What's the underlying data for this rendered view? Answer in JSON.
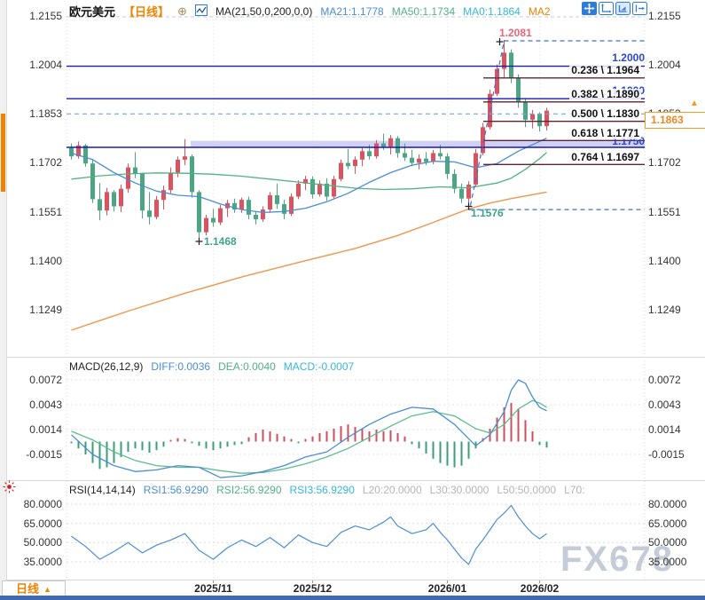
{
  "header": {
    "symbol": "欧元美元",
    "timeframe": "【日线】",
    "link_icon": "⊕",
    "ma_settings": "MA(21,50,0,200,0,0)",
    "ma21_label": "MA21:1.1778",
    "ma50_label": "MA50:1.1734",
    "ma0_label": "MA0:1.1864",
    "ma2_label": "MA2"
  },
  "toolbar": {
    "icons": [
      "pan-tool",
      "axis-scale",
      "axis-scale-active",
      "jump-to-latest"
    ]
  },
  "main_chart": {
    "current_price": "1.1863",
    "peak_label": "1.2081",
    "low_label_1": "1.1468",
    "low_label_2": "1.1576",
    "level_labels": {
      "l1": "1.2000",
      "l2": "1.1900",
      "l3": "1.1750"
    },
    "fib_labels": [
      "0.236 \\ 1.1964",
      "0.382 \\ 1.1890",
      "0.500 \\ 1.1830",
      "0.618 \\ 1.1771",
      "0.764 \\ 1.1697"
    ]
  },
  "macd_header": {
    "name": "MACD(26,12,9)",
    "diff": "DIFF:0.0036",
    "dea": "DEA:0.0040",
    "macd": "MACD:-0.0007"
  },
  "rsi_header": {
    "name": "RSI(14,14,14)",
    "rsi1": "RSI1:56.9290",
    "rsi2": "RSI2:56.9290",
    "rsi3": "RSI3:56.9290",
    "l20": "L20:20.0000",
    "l30": "L30:30.0000",
    "l50": "L50:50.0000",
    "l70": "L70:"
  },
  "bottom_bar": {
    "timeframe": "日线",
    "arrow": "▲"
  },
  "watermark": "FX678",
  "time_axis": [
    "2025/11",
    "2025/12",
    "2026/01",
    "2026/02"
  ],
  "colors": {
    "up": "#d9545f",
    "down": "#4ca583",
    "ma21": "#4a8ed2",
    "ma50": "#52b183",
    "ma200": "#f0954c",
    "navy_line": "#1c1cae",
    "fib_line": "#5e2433",
    "dashed_blue": "#3a6fd8",
    "dashed_light": "#7aa0e4",
    "band": "#c9c9f2",
    "macd_up": "#cc4f5e",
    "macd_down": "#3e9e78",
    "diff": "#4a8ed2",
    "dea": "#5cbd8e",
    "rsi": "#4a8ed2",
    "accent_orange": "#f08300",
    "bottom_strip": "#3f69b5",
    "watermark": "#c5cbd7"
  },
  "chart_data": [
    {
      "type": "candlestick",
      "title": "EUR/USD Daily (欧元美元 日线)",
      "price_axis": [
        1.2155,
        1.2004,
        1.1853,
        1.1702,
        1.1551,
        1.14,
        1.1249
      ],
      "x_ticks": [
        {
          "label": "2025/11",
          "index": 20
        },
        {
          "label": "2025/12",
          "index": 34
        },
        {
          "label": "2026/01",
          "index": 53
        },
        {
          "label": "2026/02",
          "index": 66
        }
      ],
      "candles_ohlc": [
        [
          1.1748,
          1.1762,
          1.1712,
          1.1722
        ],
        [
          1.1722,
          1.1768,
          1.1715,
          1.1756
        ],
        [
          1.1756,
          1.176,
          1.169,
          1.17
        ],
        [
          1.17,
          1.1712,
          1.1578,
          1.159
        ],
        [
          1.159,
          1.164,
          1.1525,
          1.1555
        ],
        [
          1.1555,
          1.1625,
          1.154,
          1.1612
        ],
        [
          1.1612,
          1.1618,
          1.1552,
          1.1568
        ],
        [
          1.1568,
          1.1635,
          1.155,
          1.1622
        ],
        [
          1.1622,
          1.17,
          1.161,
          1.1688
        ],
        [
          1.1688,
          1.1735,
          1.1655,
          1.1668
        ],
        [
          1.1668,
          1.1672,
          1.153,
          1.1555
        ],
        [
          1.1555,
          1.1612,
          1.1512,
          1.1535
        ],
        [
          1.1535,
          1.16,
          1.1528,
          1.1588
        ],
        [
          1.1588,
          1.1632,
          1.1558,
          1.1618
        ],
        [
          1.1618,
          1.1688,
          1.1608,
          1.1672
        ],
        [
          1.1672,
          1.1722,
          1.1658,
          1.1712
        ],
        [
          1.1712,
          1.1775,
          1.1695,
          1.1722
        ],
        [
          1.1722,
          1.1728,
          1.1595,
          1.1612
        ],
        [
          1.1612,
          1.1618,
          1.1468,
          1.1488
        ],
        [
          1.1488,
          1.1542,
          1.1478,
          1.1532
        ],
        [
          1.1532,
          1.156,
          1.1505,
          1.1518
        ],
        [
          1.1518,
          1.1572,
          1.151,
          1.1562
        ],
        [
          1.1562,
          1.1588,
          1.1535,
          1.1578
        ],
        [
          1.1578,
          1.1592,
          1.1548,
          1.1558
        ],
        [
          1.1558,
          1.1595,
          1.1548,
          1.1588
        ],
        [
          1.1588,
          1.1598,
          1.1528,
          1.1542
        ],
        [
          1.1542,
          1.1552,
          1.1512,
          1.1528
        ],
        [
          1.1528,
          1.1568,
          1.152,
          1.1558
        ],
        [
          1.1558,
          1.1612,
          1.1548,
          1.1602
        ],
        [
          1.1602,
          1.1638,
          1.156,
          1.1575
        ],
        [
          1.1575,
          1.1588,
          1.1528,
          1.1545
        ],
        [
          1.1545,
          1.1608,
          1.1538,
          1.1598
        ],
        [
          1.1598,
          1.1648,
          1.159,
          1.1638
        ],
        [
          1.1638,
          1.1662,
          1.1618,
          1.1652
        ],
        [
          1.1652,
          1.166,
          1.1592,
          1.1605
        ],
        [
          1.1605,
          1.1648,
          1.1598,
          1.1638
        ],
        [
          1.1638,
          1.1655,
          1.1585,
          1.1598
        ],
        [
          1.1598,
          1.1662,
          1.1592,
          1.1652
        ],
        [
          1.1652,
          1.1712,
          1.1645,
          1.1702
        ],
        [
          1.1702,
          1.1745,
          1.1682,
          1.1692
        ],
        [
          1.1692,
          1.1722,
          1.1668,
          1.1712
        ],
        [
          1.1712,
          1.1748,
          1.1692,
          1.1738
        ],
        [
          1.1738,
          1.1758,
          1.1712,
          1.1722
        ],
        [
          1.1722,
          1.1772,
          1.1715,
          1.1762
        ],
        [
          1.1762,
          1.1792,
          1.1742,
          1.1752
        ],
        [
          1.1752,
          1.1788,
          1.1728,
          1.1778
        ],
        [
          1.1778,
          1.1785,
          1.1718,
          1.1732
        ],
        [
          1.1732,
          1.1762,
          1.1708,
          1.1718
        ],
        [
          1.1718,
          1.1742,
          1.1692,
          1.1702
        ],
        [
          1.1702,
          1.1728,
          1.1682,
          1.1715
        ],
        [
          1.1715,
          1.1735,
          1.1695,
          1.1705
        ],
        [
          1.1705,
          1.1742,
          1.1698,
          1.1732
        ],
        [
          1.1732,
          1.1758,
          1.1712,
          1.1722
        ],
        [
          1.1722,
          1.1732,
          1.1652,
          1.1668
        ],
        [
          1.1668,
          1.1682,
          1.1608,
          1.1622
        ],
        [
          1.1622,
          1.1638,
          1.1578,
          1.1592
        ],
        [
          1.1592,
          1.1645,
          1.1576,
          1.1635
        ],
        [
          1.1635,
          1.1745,
          1.1628,
          1.1732
        ],
        [
          1.1732,
          1.1825,
          1.1725,
          1.1812
        ],
        [
          1.1812,
          1.1928,
          1.1805,
          1.1915
        ],
        [
          1.1915,
          1.2005,
          1.1908,
          1.1992
        ],
        [
          1.1992,
          1.2081,
          1.1962,
          1.2042
        ],
        [
          1.2042,
          1.2052,
          1.1948,
          1.1962
        ],
        [
          1.1962,
          1.1975,
          1.1872,
          1.1888
        ],
        [
          1.1888,
          1.1902,
          1.1812,
          1.1835
        ],
        [
          1.1835,
          1.1865,
          1.1808,
          1.1852
        ],
        [
          1.1852,
          1.1858,
          1.1798,
          1.1815
        ],
        [
          1.1815,
          1.1872,
          1.1802,
          1.1863
        ]
      ],
      "ma21": [
        [
          0,
          1.1732
        ],
        [
          3,
          1.1712
        ],
        [
          6,
          1.1672
        ],
        [
          9,
          1.164
        ],
        [
          12,
          1.1615
        ],
        [
          15,
          1.1602
        ],
        [
          18,
          1.1598
        ],
        [
          21,
          1.1575
        ],
        [
          24,
          1.1558
        ],
        [
          27,
          1.1549
        ],
        [
          30,
          1.1552
        ],
        [
          33,
          1.1562
        ],
        [
          36,
          1.1582
        ],
        [
          39,
          1.1608
        ],
        [
          42,
          1.1642
        ],
        [
          45,
          1.1672
        ],
        [
          48,
          1.1695
        ],
        [
          51,
          1.1707
        ],
        [
          54,
          1.1705
        ],
        [
          57,
          1.1687
        ],
        [
          60,
          1.17
        ],
        [
          63,
          1.1738
        ],
        [
          66,
          1.1768
        ],
        [
          67,
          1.1778
        ]
      ],
      "ma50": [
        [
          0,
          1.1652
        ],
        [
          4,
          1.1662
        ],
        [
          8,
          1.1668
        ],
        [
          12,
          1.1671
        ],
        [
          16,
          1.167
        ],
        [
          20,
          1.1667
        ],
        [
          24,
          1.1661
        ],
        [
          28,
          1.1652
        ],
        [
          32,
          1.1643
        ],
        [
          36,
          1.1633
        ],
        [
          40,
          1.1624
        ],
        [
          44,
          1.162
        ],
        [
          48,
          1.1622
        ],
        [
          52,
          1.1628
        ],
        [
          56,
          1.1625
        ],
        [
          60,
          1.164
        ],
        [
          62,
          1.1655
        ],
        [
          64,
          1.1682
        ],
        [
          66,
          1.1715
        ],
        [
          67,
          1.1734
        ]
      ],
      "ma200": [
        [
          0,
          1.1186
        ],
        [
          8,
          1.1245
        ],
        [
          16,
          1.13
        ],
        [
          24,
          1.135
        ],
        [
          32,
          1.1395
        ],
        [
          40,
          1.1438
        ],
        [
          46,
          1.1478
        ],
        [
          50,
          1.151
        ],
        [
          53,
          1.1535
        ],
        [
          56,
          1.156
        ],
        [
          59,
          1.1578
        ],
        [
          62,
          1.1592
        ],
        [
          64,
          1.16
        ],
        [
          67,
          1.1612
        ]
      ],
      "h_lines": [
        1.2,
        1.19,
        1.175
      ],
      "fib_levels": [
        {
          "ratio": 0.236,
          "price": 1.1964
        },
        {
          "ratio": 0.382,
          "price": 1.189
        },
        {
          "ratio": 0.5,
          "price": 1.183
        },
        {
          "ratio": 0.618,
          "price": 1.1771
        },
        {
          "ratio": 0.764,
          "price": 1.1697
        }
      ],
      "band_zone": {
        "price_top": 1.177,
        "price_bottom": 1.1748,
        "start_index": 17
      },
      "annotations": {
        "swing_high": {
          "price": 1.2081,
          "index": 61
        },
        "swing_low": {
          "price": 1.1576,
          "index": 56
        },
        "major_low": {
          "price": 1.1468,
          "index": 18
        },
        "dashed_level": 1.1853,
        "dashed_low_level": 1.1558
      }
    },
    {
      "type": "macd",
      "params": "MACD(26,12,9)",
      "y_axis": [
        0.0072,
        0.0043,
        0.0014,
        -0.0015
      ],
      "histogram_scale": 0.0001,
      "histogram": [
        -2,
        -8,
        -15,
        -25,
        -32,
        -30,
        -25,
        -18,
        -12,
        -8,
        -10,
        -13,
        -10,
        -6,
        2,
        4,
        3,
        -2,
        -5,
        -8,
        -10,
        -8,
        -6,
        -4,
        -3,
        5,
        10,
        14,
        12,
        9,
        6,
        3,
        -2,
        3,
        6,
        10,
        12,
        15,
        18,
        20,
        17,
        15,
        12,
        14,
        12,
        13,
        10,
        6,
        -3,
        -8,
        -14,
        -20,
        -25,
        -28,
        -30,
        -28,
        -20,
        -8,
        4,
        15,
        28,
        40,
        45,
        38,
        25,
        12,
        -4,
        -7
      ],
      "diff_line": [
        [
          0,
          0.0008
        ],
        [
          3,
          -0.0015
        ],
        [
          6,
          -0.0028
        ],
        [
          9,
          -0.0035
        ],
        [
          12,
          -0.0033
        ],
        [
          15,
          -0.0028
        ],
        [
          18,
          -0.003
        ],
        [
          21,
          -0.0042
        ],
        [
          24,
          -0.004
        ],
        [
          27,
          -0.0035
        ],
        [
          30,
          -0.0028
        ],
        [
          33,
          -0.0018
        ],
        [
          36,
          -0.0012
        ],
        [
          39,
          0.0005
        ],
        [
          42,
          0.002
        ],
        [
          45,
          0.0032
        ],
        [
          48,
          0.004
        ],
        [
          51,
          0.0038
        ],
        [
          54,
          0.002
        ],
        [
          57,
          -0.0005
        ],
        [
          59,
          0.0008
        ],
        [
          61,
          0.0035
        ],
        [
          62,
          0.006
        ],
        [
          63,
          0.0072
        ],
        [
          64,
          0.0068
        ],
        [
          65,
          0.0052
        ],
        [
          66,
          0.004
        ],
        [
          67,
          0.0036
        ]
      ],
      "dea_line": [
        [
          0,
          0.0012
        ],
        [
          3,
          0.0002
        ],
        [
          6,
          -0.0012
        ],
        [
          9,
          -0.0022
        ],
        [
          12,
          -0.0028
        ],
        [
          15,
          -0.003
        ],
        [
          18,
          -0.003
        ],
        [
          21,
          -0.0034
        ],
        [
          24,
          -0.0037
        ],
        [
          27,
          -0.0036
        ],
        [
          30,
          -0.0032
        ],
        [
          33,
          -0.0026
        ],
        [
          36,
          -0.0018
        ],
        [
          39,
          -0.0008
        ],
        [
          42,
          0.0005
        ],
        [
          45,
          0.0018
        ],
        [
          48,
          0.003
        ],
        [
          51,
          0.0035
        ],
        [
          54,
          0.003
        ],
        [
          57,
          0.0015
        ],
        [
          59,
          0.001
        ],
        [
          61,
          0.002
        ],
        [
          63,
          0.0038
        ],
        [
          65,
          0.0048
        ],
        [
          66,
          0.0045
        ],
        [
          67,
          0.004
        ]
      ]
    },
    {
      "type": "rsi",
      "params": "RSI(14,14,14)",
      "y_axis": [
        80,
        65,
        50,
        35
      ],
      "rsi_line": [
        [
          0,
          55
        ],
        [
          2,
          47
        ],
        [
          4,
          37
        ],
        [
          6,
          43
        ],
        [
          8,
          50
        ],
        [
          10,
          42
        ],
        [
          12,
          48
        ],
        [
          14,
          52
        ],
        [
          16,
          57
        ],
        [
          18,
          44
        ],
        [
          20,
          37
        ],
        [
          22,
          46
        ],
        [
          24,
          52
        ],
        [
          26,
          47
        ],
        [
          28,
          54
        ],
        [
          30,
          46
        ],
        [
          32,
          56
        ],
        [
          34,
          50
        ],
        [
          36,
          47
        ],
        [
          38,
          58
        ],
        [
          40,
          63
        ],
        [
          42,
          60
        ],
        [
          44,
          66
        ],
        [
          45,
          70
        ],
        [
          46,
          63
        ],
        [
          48,
          57
        ],
        [
          50,
          60
        ],
        [
          51,
          65
        ],
        [
          52,
          58
        ],
        [
          53,
          52
        ],
        [
          54,
          45
        ],
        [
          55,
          38
        ],
        [
          56,
          33
        ],
        [
          57,
          45
        ],
        [
          58,
          52
        ],
        [
          59,
          60
        ],
        [
          60,
          68
        ],
        [
          61,
          73
        ],
        [
          62,
          79
        ],
        [
          63,
          70
        ],
        [
          64,
          63
        ],
        [
          65,
          57
        ],
        [
          66,
          53
        ],
        [
          67,
          57
        ]
      ]
    }
  ]
}
